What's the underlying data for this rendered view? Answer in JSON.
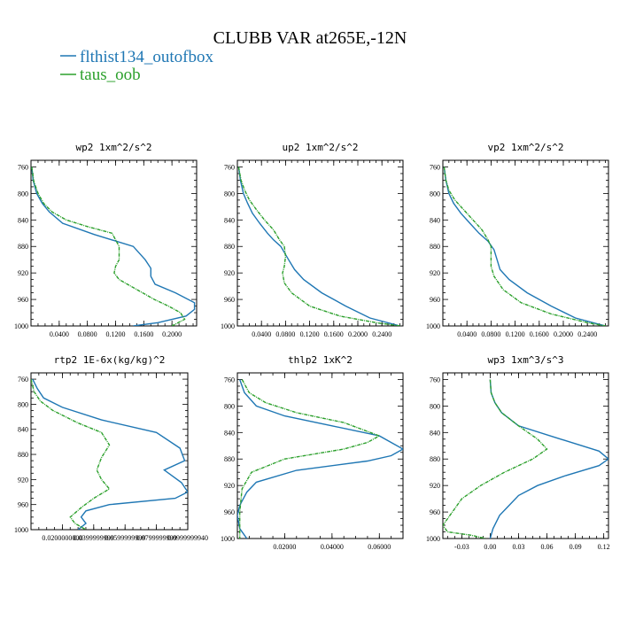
{
  "title": "CLUBB VAR at265E,-12N",
  "legend": [
    {
      "name": "flthist134_outofbox",
      "color": "#1f77b4"
    },
    {
      "name": "taus_oob",
      "color": "#2ca02c"
    }
  ],
  "chart_data": [
    {
      "type": "line",
      "panel_title": "wp2   1xm^2/s^2",
      "xlim": [
        0,
        0.235
      ],
      "ylim": [
        1000,
        750
      ],
      "y_reversed": true,
      "x_ticks": [
        0.04,
        0.08,
        0.12,
        0.16,
        0.2
      ],
      "x_tick_labels": [
        "0.0400",
        "0.0800",
        "0.1200",
        "0.1600",
        "0.2000"
      ],
      "y_ticks": [
        760,
        800,
        840,
        880,
        920,
        960,
        1000
      ],
      "y_tick_labels": [
        "760",
        "800",
        "840",
        "880",
        "920",
        "960",
        "1000"
      ],
      "series": [
        {
          "name": "flthist134_outofbox",
          "color": "#1f77b4",
          "x": [
            0.001,
            0.003,
            0.008,
            0.016,
            0.026,
            0.045,
            0.09,
            0.145,
            0.162,
            0.17,
            0.17,
            0.176,
            0.205,
            0.232,
            0.232,
            0.22,
            0.18,
            0.145
          ],
          "y": [
            760,
            780,
            800,
            815,
            828,
            845,
            862,
            880,
            900,
            913,
            925,
            937,
            950,
            965,
            975,
            985,
            995,
            1000
          ]
        },
        {
          "name": "taus_oob",
          "color": "#2ca02c",
          "x": [
            0.001,
            0.004,
            0.01,
            0.018,
            0.03,
            0.05,
            0.08,
            0.115,
            0.125,
            0.125,
            0.12,
            0.118,
            0.125,
            0.15,
            0.175,
            0.195,
            0.212,
            0.218,
            0.2
          ],
          "y": [
            760,
            782,
            800,
            815,
            828,
            840,
            850,
            860,
            880,
            900,
            910,
            920,
            930,
            945,
            960,
            970,
            980,
            990,
            1000
          ]
        }
      ]
    },
    {
      "type": "line",
      "panel_title": "up2   1xm^2/s^2",
      "xlim": [
        0,
        0.275
      ],
      "ylim": [
        1000,
        750
      ],
      "y_reversed": true,
      "x_ticks": [
        0.04,
        0.08,
        0.12,
        0.16,
        0.2,
        0.24
      ],
      "x_tick_labels": [
        "0.0400",
        "0.0800",
        "0.1200",
        "0.1600",
        "0.2000",
        "0.2400"
      ],
      "y_ticks": [
        760,
        800,
        840,
        880,
        920,
        960,
        1000
      ],
      "y_tick_labels": [
        "760",
        "800",
        "840",
        "880",
        "920",
        "960",
        "1000"
      ],
      "series": [
        {
          "name": "flthist134_outofbox",
          "color": "#1f77b4",
          "x": [
            0.002,
            0.005,
            0.01,
            0.017,
            0.025,
            0.037,
            0.05,
            0.06,
            0.072,
            0.085,
            0.095,
            0.11,
            0.14,
            0.18,
            0.22,
            0.27
          ],
          "y": [
            760,
            780,
            800,
            815,
            830,
            845,
            860,
            870,
            880,
            900,
            915,
            930,
            950,
            970,
            988,
            1000
          ]
        },
        {
          "name": "taus_oob",
          "color": "#2ca02c",
          "x": [
            0.002,
            0.006,
            0.012,
            0.02,
            0.032,
            0.045,
            0.06,
            0.07,
            0.078,
            0.08,
            0.078,
            0.075,
            0.078,
            0.09,
            0.12,
            0.17,
            0.23,
            0.27
          ],
          "y": [
            760,
            780,
            795,
            810,
            825,
            840,
            855,
            870,
            880,
            895,
            910,
            920,
            935,
            950,
            970,
            985,
            995,
            1000
          ]
        }
      ]
    },
    {
      "type": "line",
      "panel_title": "vp2   1xm^2/s^2",
      "xlim": [
        0,
        0.275
      ],
      "ylim": [
        1000,
        750
      ],
      "y_reversed": true,
      "x_ticks": [
        0.04,
        0.08,
        0.12,
        0.16,
        0.2,
        0.24
      ],
      "x_tick_labels": [
        "0.0400",
        "0.0800",
        "0.1200",
        "0.1600",
        "0.2000",
        "0.2400"
      ],
      "y_ticks": [
        760,
        800,
        840,
        880,
        920,
        960,
        1000
      ],
      "y_tick_labels": [
        "760",
        "800",
        "840",
        "880",
        "920",
        "960",
        "1000"
      ],
      "series": [
        {
          "name": "flthist134_outofbox",
          "color": "#1f77b4",
          "x": [
            0.002,
            0.005,
            0.01,
            0.018,
            0.03,
            0.045,
            0.06,
            0.075,
            0.085,
            0.09,
            0.095,
            0.11,
            0.14,
            0.18,
            0.22,
            0.27
          ],
          "y": [
            760,
            780,
            800,
            815,
            830,
            845,
            860,
            872,
            885,
            900,
            915,
            930,
            950,
            970,
            988,
            1000
          ]
        },
        {
          "name": "taus_oob",
          "color": "#2ca02c",
          "x": [
            0.002,
            0.005,
            0.01,
            0.02,
            0.035,
            0.05,
            0.065,
            0.075,
            0.08,
            0.08,
            0.08,
            0.085,
            0.1,
            0.13,
            0.18,
            0.24,
            0.27
          ],
          "y": [
            760,
            780,
            795,
            810,
            825,
            840,
            855,
            870,
            880,
            895,
            910,
            925,
            945,
            965,
            982,
            995,
            1000
          ]
        }
      ]
    },
    {
      "type": "line",
      "panel_title": "rtp2   1E-6x(kg/kg)^2",
      "xlim": [
        0,
        0.1
      ],
      "ylim": [
        1000,
        750
      ],
      "y_reversed": true,
      "x_ticks": [
        0.02,
        0.04,
        0.06,
        0.08,
        0.1
      ],
      "x_tick_labels": [
        "0.0200000000",
        "0.0399999999",
        "0.0599999999",
        "0.0799999999",
        "0.0999999940"
      ],
      "y_ticks": [
        760,
        800,
        840,
        880,
        920,
        960,
        1000
      ],
      "y_tick_labels": [
        "760",
        "800",
        "840",
        "880",
        "920",
        "960",
        "1000"
      ],
      "series": [
        {
          "name": "flthist134_outofbox",
          "color": "#1f77b4",
          "x": [
            0.001,
            0.004,
            0.008,
            0.02,
            0.045,
            0.08,
            0.095,
            0.098,
            0.085,
            0.096,
            0.1,
            0.092,
            0.05,
            0.035,
            0.032,
            0.035,
            0.03
          ],
          "y": [
            760,
            775,
            790,
            805,
            825,
            845,
            870,
            890,
            905,
            925,
            940,
            950,
            960,
            970,
            980,
            990,
            1000
          ]
        },
        {
          "name": "taus_oob",
          "color": "#2ca02c",
          "x": [
            0.0,
            0.002,
            0.006,
            0.014,
            0.03,
            0.045,
            0.05,
            0.045,
            0.042,
            0.045,
            0.05,
            0.04,
            0.032,
            0.025,
            0.028,
            0.035
          ],
          "y": [
            760,
            780,
            795,
            810,
            830,
            845,
            865,
            885,
            905,
            920,
            935,
            950,
            965,
            980,
            990,
            1000
          ]
        }
      ]
    },
    {
      "type": "line",
      "panel_title": "thlp2   1xK^2",
      "xlim": [
        0,
        0.07
      ],
      "ylim": [
        1000,
        750
      ],
      "y_reversed": true,
      "x_ticks": [
        0.02,
        0.04,
        0.06
      ],
      "x_tick_labels": [
        "0.02000",
        "0.04000",
        "0.06000"
      ],
      "y_ticks": [
        760,
        800,
        840,
        880,
        920,
        960,
        1000
      ],
      "y_tick_labels": [
        "760",
        "800",
        "840",
        "880",
        "920",
        "960",
        "1000"
      ],
      "series": [
        {
          "name": "flthist134_outofbox",
          "color": "#1f77b4",
          "x": [
            0.001,
            0.003,
            0.008,
            0.02,
            0.04,
            0.06,
            0.07,
            0.065,
            0.055,
            0.025,
            0.008,
            0.004,
            0.001,
            0.0,
            0.001,
            0.004
          ],
          "y": [
            760,
            780,
            800,
            815,
            830,
            845,
            865,
            875,
            883,
            897,
            915,
            930,
            950,
            965,
            985,
            1000
          ]
        },
        {
          "name": "taus_oob",
          "color": "#2ca02c",
          "x": [
            0.002,
            0.005,
            0.012,
            0.025,
            0.045,
            0.06,
            0.055,
            0.045,
            0.02,
            0.006,
            0.002,
            0.001,
            0.001
          ],
          "y": [
            760,
            780,
            795,
            810,
            825,
            845,
            855,
            865,
            880,
            900,
            925,
            960,
            1000
          ]
        }
      ]
    },
    {
      "type": "line",
      "panel_title": "wp3   1xm^3/s^3",
      "xlim": [
        -0.05,
        0.125
      ],
      "ylim": [
        1000,
        750
      ],
      "y_reversed": true,
      "x_ticks": [
        -0.03,
        0.0,
        0.03,
        0.06,
        0.09,
        0.12
      ],
      "x_tick_labels": [
        "-0.03",
        "0.00",
        "0.03",
        "0.06",
        "0.09",
        "0.12"
      ],
      "y_ticks": [
        760,
        800,
        840,
        880,
        920,
        960,
        1000
      ],
      "y_tick_labels": [
        "760",
        "800",
        "840",
        "880",
        "920",
        "960",
        "1000"
      ],
      "series": [
        {
          "name": "flthist134_outofbox",
          "color": "#1f77b4",
          "x": [
            0.0,
            0.001,
            0.005,
            0.012,
            0.03,
            0.07,
            0.115,
            0.125,
            0.115,
            0.08,
            0.05,
            0.03,
            0.02,
            0.01,
            0.003,
            0.0
          ],
          "y": [
            760,
            780,
            795,
            810,
            830,
            848,
            868,
            880,
            890,
            905,
            920,
            935,
            950,
            965,
            985,
            1000
          ]
        },
        {
          "name": "taus_oob",
          "color": "#2ca02c",
          "x": [
            0.0,
            0.001,
            0.005,
            0.012,
            0.03,
            0.05,
            0.06,
            0.045,
            0.015,
            -0.01,
            -0.03,
            -0.04,
            -0.05,
            -0.045,
            -0.02,
            -0.005
          ],
          "y": [
            760,
            780,
            795,
            810,
            830,
            850,
            865,
            880,
            900,
            920,
            940,
            960,
            980,
            990,
            995,
            1000
          ]
        }
      ]
    }
  ]
}
